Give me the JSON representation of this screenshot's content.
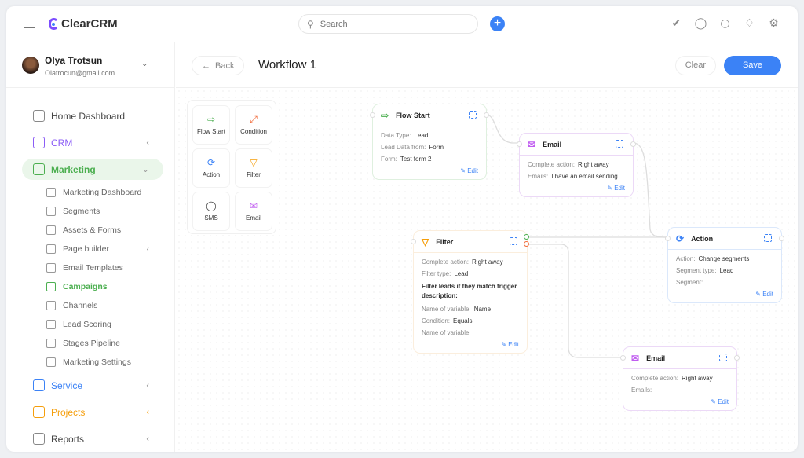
{
  "app": {
    "name": "ClearCRM"
  },
  "search": {
    "placeholder": "Search"
  },
  "colors": {
    "accent": "#3b82f6",
    "marketing": "#4caf50",
    "crm": "#8b5cf6",
    "service": "#3b82f6",
    "projects": "#f59e0b"
  },
  "user": {
    "name": "Olya Trotsun",
    "email": "Olatrocun@gmail.com"
  },
  "topbar_icons": [
    "check-circle-icon",
    "chat-icon",
    "user-clock-icon",
    "bell-icon",
    "gear-icon"
  ],
  "nav": {
    "home": "Home Dashboard",
    "crm": "CRM",
    "marketing": "Marketing",
    "sub": [
      "Marketing Dashboard",
      "Segments",
      "Assets & Forms",
      "Page builder",
      "Email Templates",
      "Campaigns",
      "Channels",
      "Lead Scoring",
      "Stages Pipeline",
      "Marketing Settings"
    ],
    "active_sub": "Campaigns",
    "service": "Service",
    "projects": "Projects",
    "reports": "Reports"
  },
  "header": {
    "back": "Back",
    "title": "Workflow 1",
    "clear": "Clear",
    "save": "Save"
  },
  "palette": [
    "Flow Start",
    "Condition",
    "Action",
    "Filter",
    "SMS",
    "Email"
  ],
  "nodes": {
    "flowstart": {
      "title": "Flow Start",
      "rows": [
        [
          "Data Type:",
          "Lead"
        ],
        [
          "Lead Data from:",
          "Form"
        ],
        [
          "Form:",
          "Test form 2"
        ]
      ],
      "edit": "Edit"
    },
    "email1": {
      "title": "Email",
      "rows": [
        [
          "Complete action:",
          "Right away"
        ],
        [
          "Emails:",
          "I have an email sending..."
        ]
      ],
      "edit": "Edit"
    },
    "filter": {
      "title": "Filter",
      "rows": [
        [
          "Complete action:",
          "Right away"
        ],
        [
          "Filter type:",
          "Lead"
        ]
      ],
      "desc": "Filter leads if they match trigger description:",
      "rows2": [
        [
          "Name of variable:",
          "Name"
        ],
        [
          "Condition:",
          "Equals"
        ],
        [
          "Name of variable:",
          ""
        ]
      ],
      "edit": "Edit"
    },
    "action": {
      "title": "Action",
      "rows": [
        [
          "Action:",
          "Change segments"
        ],
        [
          "Segment type:",
          "Lead"
        ],
        [
          "Segment:",
          ""
        ]
      ],
      "edit": "Edit"
    },
    "email2": {
      "title": "Email",
      "rows": [
        [
          "Complete action:",
          "Right away"
        ],
        [
          "Emails:",
          ""
        ]
      ],
      "edit": "Edit"
    }
  }
}
